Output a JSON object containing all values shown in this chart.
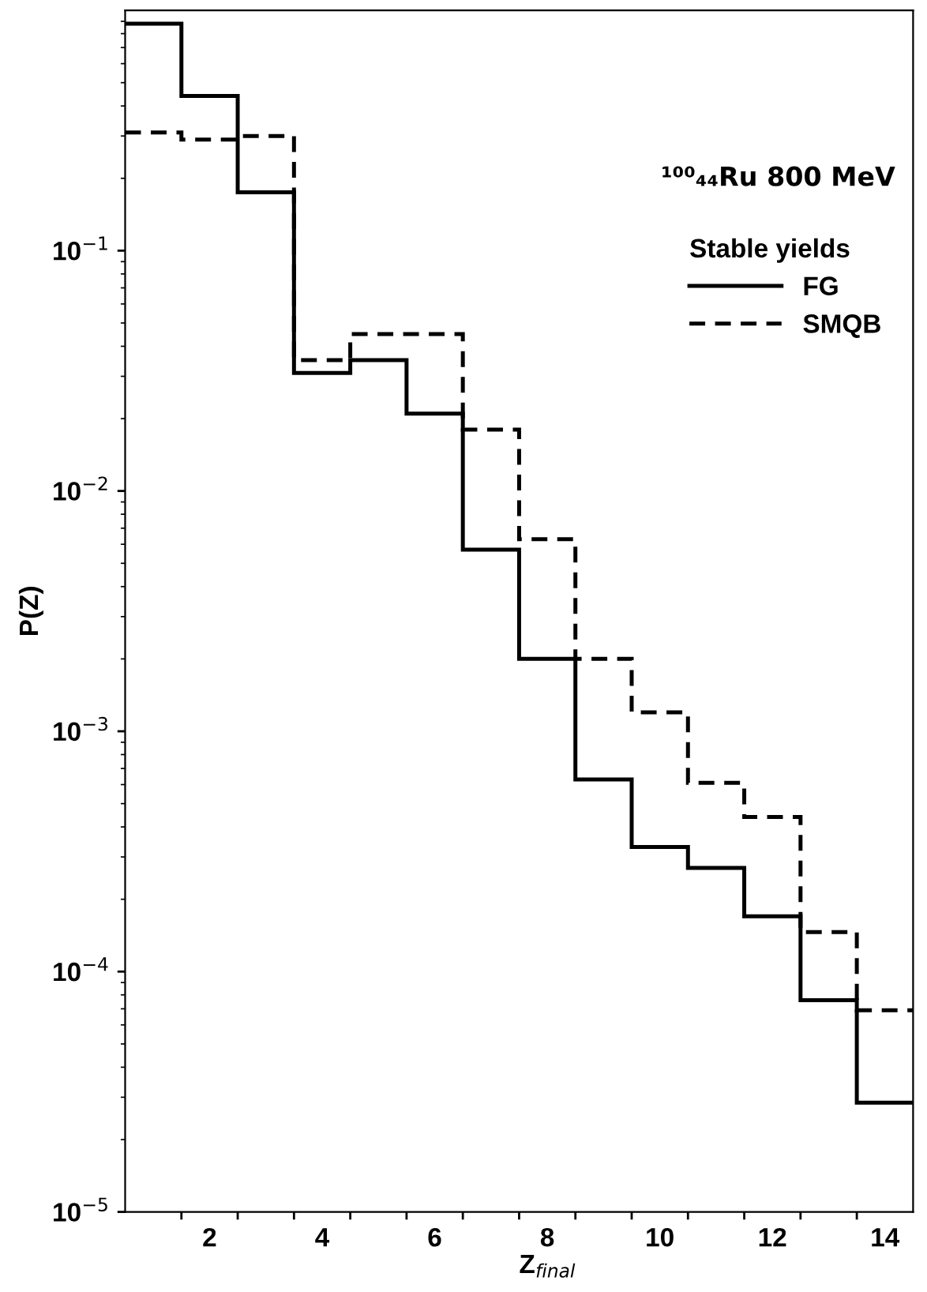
{
  "chart_data": {
    "type": "histogram",
    "xlabel": "Z$_{final}$",
    "ylabel": "P(Z)",
    "legend_title": "Stable yields",
    "annotations": [
      "¹⁰⁰₄₄Ru 800 MeV"
    ],
    "bins": [
      0.5,
      1.5,
      2.5,
      3.5,
      4.5,
      5.5,
      6.5,
      7.5,
      8.5,
      9.5,
      10.5,
      11.5,
      12.5,
      13.5,
      14.5
    ],
    "series": [
      {
        "name": "FG",
        "color": "#000000",
        "line_style": "solid",
        "values": [
          0.88,
          0.44,
          0.175,
          0.031,
          0.035,
          0.021,
          0.0057,
          0.002,
          0.00063,
          0.00033,
          0.00027,
          0.00017,
          7.6e-05,
          2.85e-05
        ]
      },
      {
        "name": "SMQB",
        "color": "#000000",
        "line_style": "dashed",
        "values": [
          0.31,
          0.29,
          0.3,
          0.035,
          0.045,
          0.045,
          0.018,
          0.0063,
          0.002,
          0.0012,
          0.00061,
          0.00044,
          0.000146,
          6.9e-05
        ]
      }
    ],
    "log": "y",
    "xlim": [
      0.5,
      14.5
    ],
    "ylim": [
      1e-05,
      1
    ],
    "xticks": [
      {
        "value": 1.5,
        "label": null
      },
      2,
      {
        "value": 2.5,
        "label": null
      },
      {
        "value": 3.5,
        "label": null
      },
      4,
      {
        "value": 4.5,
        "label": null
      },
      {
        "value": 5.5,
        "label": null
      },
      6,
      {
        "value": 6.5,
        "label": null
      },
      {
        "value": 7.5,
        "label": null
      },
      8,
      {
        "value": 8.5,
        "label": null
      },
      {
        "value": 9.5,
        "label": null
      },
      10,
      {
        "value": 10.5,
        "label": null
      },
      {
        "value": 11.5,
        "label": null
      },
      12,
      {
        "value": 12.5,
        "label": null
      },
      {
        "value": 13.5,
        "label": null
      },
      14
    ],
    "yticks": [
      {
        "value": 1e-05,
        "label": "10$^{−5}$"
      },
      {
        "value": 0.0001,
        "label": "10$^{−4}$"
      },
      {
        "value": 0.001,
        "label": "10$^{−3}$"
      },
      {
        "value": 0.01,
        "label": "10$^{−2}$"
      },
      {
        "value": 0.1,
        "label": "10$^{−1}$"
      }
    ],
    "legend": "top right",
    "grid": false
  }
}
